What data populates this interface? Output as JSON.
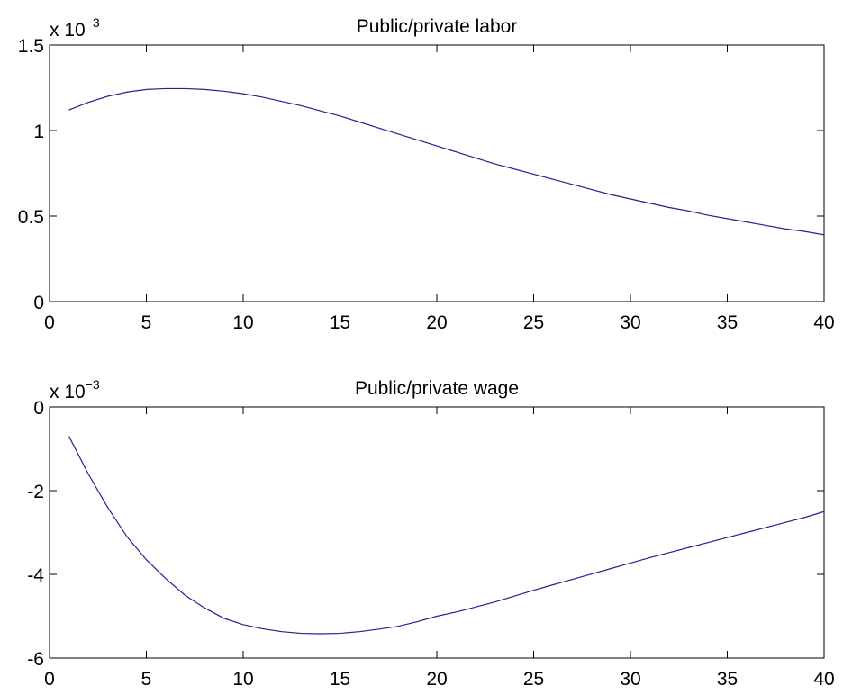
{
  "chart_data": [
    {
      "type": "line",
      "title": "Public/private labor",
      "multiplier": "x 10",
      "multiplier_exponent": "−3",
      "x": [
        1,
        2,
        3,
        4,
        5,
        6,
        7,
        8,
        9,
        10,
        11,
        12,
        13,
        14,
        15,
        16,
        17,
        18,
        19,
        20,
        21,
        22,
        23,
        24,
        25,
        26,
        27,
        28,
        29,
        30,
        31,
        32,
        33,
        34,
        35,
        36,
        37,
        38,
        39,
        40
      ],
      "series": [
        {
          "color": "#23238e",
          "values": [
            1.12,
            1.165,
            1.2,
            1.225,
            1.24,
            1.245,
            1.245,
            1.24,
            1.23,
            1.215,
            1.195,
            1.17,
            1.145,
            1.115,
            1.085,
            1.05,
            1.015,
            0.98,
            0.945,
            0.91,
            0.875,
            0.84,
            0.805,
            0.775,
            0.745,
            0.715,
            0.685,
            0.655,
            0.625,
            0.6,
            0.575,
            0.55,
            0.53,
            0.505,
            0.485,
            0.465,
            0.445,
            0.425,
            0.41,
            0.39
          ]
        }
      ],
      "xlim": [
        0,
        40
      ],
      "xticks": [
        0,
        5,
        10,
        15,
        20,
        25,
        30,
        35,
        40
      ],
      "ylim": [
        0,
        1.5
      ],
      "yticks": [
        0,
        0.5,
        1,
        1.5
      ]
    },
    {
      "type": "line",
      "title": "Public/private wage",
      "multiplier": "x 10",
      "multiplier_exponent": "−3",
      "x": [
        1,
        2,
        3,
        4,
        5,
        6,
        7,
        8,
        9,
        10,
        11,
        12,
        13,
        14,
        15,
        16,
        17,
        18,
        19,
        20,
        21,
        22,
        23,
        24,
        25,
        26,
        27,
        28,
        29,
        30,
        31,
        32,
        33,
        34,
        35,
        36,
        37,
        38,
        39,
        40
      ],
      "series": [
        {
          "color": "#23238e",
          "values": [
            -0.7,
            -1.6,
            -2.4,
            -3.1,
            -3.65,
            -4.1,
            -4.5,
            -4.8,
            -5.05,
            -5.2,
            -5.3,
            -5.37,
            -5.41,
            -5.42,
            -5.41,
            -5.37,
            -5.31,
            -5.24,
            -5.13,
            -5.0,
            -4.9,
            -4.78,
            -4.66,
            -4.52,
            -4.38,
            -4.25,
            -4.12,
            -3.99,
            -3.86,
            -3.73,
            -3.6,
            -3.48,
            -3.36,
            -3.24,
            -3.12,
            -3.0,
            -2.88,
            -2.76,
            -2.64,
            -2.5
          ]
        }
      ],
      "xlim": [
        0,
        40
      ],
      "xticks": [
        0,
        5,
        10,
        15,
        20,
        25,
        30,
        35,
        40
      ],
      "ylim": [
        -6,
        0
      ],
      "yticks": [
        -6,
        -4,
        -2,
        0
      ]
    }
  ]
}
